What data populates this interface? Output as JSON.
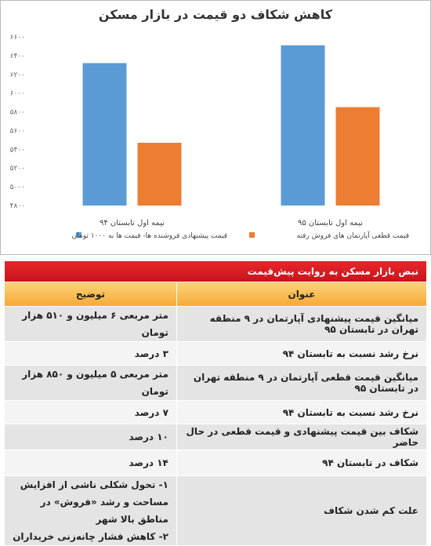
{
  "chart_data": {
    "type": "bar",
    "title": "کاهش شکاف دو قیمت در بازار مسکن",
    "categories": [
      "نیمه اول تابستان ۹۴",
      "نیمه اول تابستان ۹۵"
    ],
    "series": [
      {
        "name": "قیمت پیشنهادی فروشنده ها- قیمت ها به ۱۰۰۰ تومان",
        "color": "#5b9bd5",
        "values": [
          6320,
          6510
        ]
      },
      {
        "name": "قیمت قطعی آپارتمان های فروش رفته",
        "color": "#ed7d31",
        "values": [
          5470,
          5850
        ]
      }
    ],
    "ylim": [
      4800,
      6600
    ],
    "yticks": [
      {
        "value": 4800,
        "label": "۴۸۰۰"
      },
      {
        "value": 5000,
        "label": "۵۰۰۰"
      },
      {
        "value": 5200,
        "label": "۵۲۰۰"
      },
      {
        "value": 5400,
        "label": "۵۴۰۰"
      },
      {
        "value": 5600,
        "label": "۵۶۰۰"
      },
      {
        "value": 5800,
        "label": "۵۸۰۰"
      },
      {
        "value": 6000,
        "label": "۶۰۰۰"
      },
      {
        "value": 6200,
        "label": "۶۲۰۰"
      },
      {
        "value": 6400,
        "label": "۶۴۰۰"
      },
      {
        "value": 6600,
        "label": "۶۶۰۰"
      }
    ],
    "grid": false
  },
  "table": {
    "title": "نبض بازار مسکن به روایت پیش‌قیمت",
    "columns": [
      "عنوان",
      "توضیح"
    ],
    "rows": [
      [
        "میانگین قیمت پیشنهادی آپارتمان در ۹ منطقه تهران در تابستان ۹۵",
        [
          "متر مربعی ۶ میلیون و ۵۱۰ هزار تومان"
        ]
      ],
      [
        "نرخ رشد نسبت به تابستان ۹۴",
        [
          "۳ درصد"
        ]
      ],
      [
        "میانگین قیمت قطعی آپارتمان در ۹ منطقه تهران در تابستان ۹۵",
        [
          "متر مربعی ۵ میلیون و ۸۵۰ هزار تومان"
        ]
      ],
      [
        "نرخ رشد نسبت به تابستان ۹۴",
        [
          "۷ درصد"
        ]
      ],
      [
        "شکاف بین قیمت پیشنهادی و قیمت قطعی در حال حاضر",
        [
          "۱۰ درصد"
        ]
      ],
      [
        "شکاف در تابستان ۹۴",
        [
          "۱۴ درصد"
        ]
      ],
      [
        "علت کم شدن شکاف",
        [
          "۱- تحول شکلی ناشی از افزایش",
          "مساحت و رشد «فروش» در مناطق بالا شهر",
          "۲- کاهش فشار چانه‌زنی خریداران"
        ]
      ]
    ]
  }
}
